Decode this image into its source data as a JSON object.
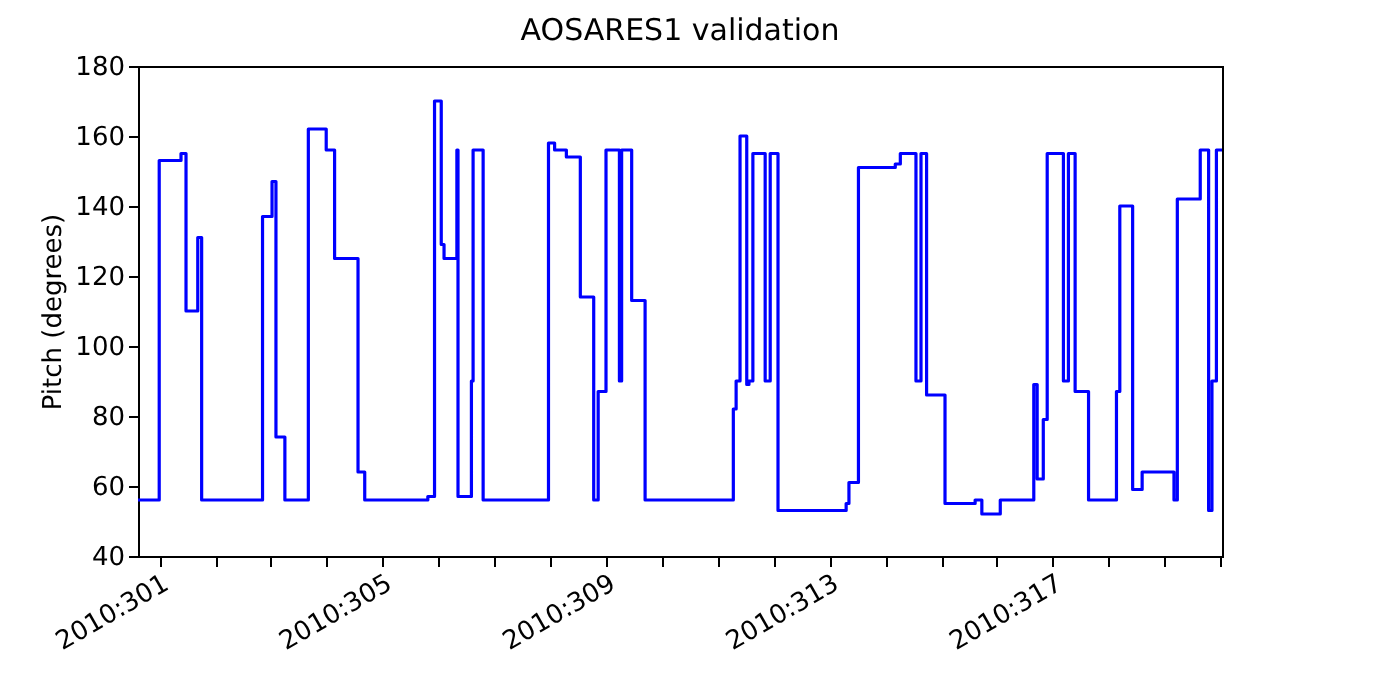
{
  "chart_data": {
    "type": "step",
    "title": "AOSARES1 validation",
    "ylabel": "Pitch (degrees)",
    "x": [
      "2010-10-27T14:53",
      "2010-10-28T00:00",
      "2010-10-28T09:22",
      "2010-10-28T11:31",
      "2010-10-28T16:34",
      "2010-10-28T18:14",
      "2010-10-29T20:24",
      "2010-10-30T00:29",
      "2010-10-30T02:10",
      "2010-10-30T06:00",
      "2010-10-30T16:05",
      "2010-10-30T23:46",
      "2010-10-31T03:22",
      "2010-10-31T13:26",
      "2010-10-31T16:19",
      "2010-11-01T19:26",
      "2010-11-01T22:19",
      "2010-11-02T01:12",
      "2010-11-02T02:24",
      "2010-11-02T07:55",
      "2010-11-02T08:24",
      "2010-11-02T14:10",
      "2010-11-02T14:53",
      "2010-11-02T19:12",
      "2010-11-03T23:17",
      "2010-11-04T01:55",
      "2010-11-04T06:58",
      "2010-11-04T12:58",
      "2010-11-04T18:43",
      "2010-11-04T20:38",
      "2010-11-05T00:00",
      "2010-11-05T05:46",
      "2010-11-05T06:43",
      "2010-11-05T11:02",
      "2010-11-05T16:48",
      "2010-11-07T06:43",
      "2010-11-07T07:55",
      "2010-11-07T09:36",
      "2010-11-07T12:29",
      "2010-11-07T13:26",
      "2010-11-07T15:07",
      "2010-11-07T20:24",
      "2010-11-07T22:34",
      "2010-11-08T01:55",
      "2010-11-09T07:12",
      "2010-11-09T08:24",
      "2010-11-09T12:29",
      "2010-11-10T04:19",
      "2010-11-10T06:29",
      "2010-11-10T13:12",
      "2010-11-10T15:22",
      "2010-11-10T17:46",
      "2010-11-11T01:41",
      "2010-11-11T14:38",
      "2010-11-11T17:31",
      "2010-11-12T01:26",
      "2010-11-12T15:50",
      "2010-11-12T17:17",
      "2010-11-12T19:55",
      "2010-11-12T21:36",
      "2010-11-13T04:34",
      "2010-11-13T06:43",
      "2010-11-13T09:36",
      "2010-11-13T15:22",
      "2010-11-14T03:22",
      "2010-11-14T04:48",
      "2010-11-14T10:19",
      "2010-11-14T14:24",
      "2010-11-15T04:05",
      "2010-11-15T05:31",
      "2010-11-15T15:22",
      "2010-11-15T18:58",
      "2010-11-15T20:24",
      "2010-11-15T22:19",
      "2010-11-16T00:43"
    ],
    "series": [
      {
        "color": "#0000ff",
        "values": [
          56,
          153,
          155,
          110,
          131,
          56,
          137,
          147,
          74,
          56,
          162,
          156,
          125,
          64,
          56,
          57,
          170,
          129,
          125,
          156,
          57,
          90,
          156,
          56,
          158,
          156,
          154,
          114,
          56,
          87,
          156,
          90,
          156,
          113,
          56,
          82,
          90,
          160,
          89,
          90,
          155,
          90,
          155,
          53,
          55,
          61,
          151,
          152,
          155,
          90,
          155,
          86,
          55,
          56,
          52,
          56,
          89,
          62,
          79,
          155,
          90,
          155,
          87,
          56,
          87,
          140,
          59,
          64,
          56,
          142,
          156,
          53,
          90,
          156,
          156
        ]
      }
    ],
    "xlim": [
      "2010-10-27T14:53",
      "2010-11-16T00:43"
    ],
    "xticks": [
      {
        "value": "2010-10-28",
        "label": "2010:301"
      },
      {
        "value": "2010-10-29",
        "label": null
      },
      {
        "value": "2010-10-30",
        "label": null
      },
      {
        "value": "2010-10-31",
        "label": null
      },
      {
        "value": "2010-11-01",
        "label": "2010:305"
      },
      {
        "value": "2010-11-02",
        "label": null
      },
      {
        "value": "2010-11-03",
        "label": null
      },
      {
        "value": "2010-11-04",
        "label": null
      },
      {
        "value": "2010-11-05",
        "label": "2010:309"
      },
      {
        "value": "2010-11-06",
        "label": null
      },
      {
        "value": "2010-11-07",
        "label": null
      },
      {
        "value": "2010-11-08",
        "label": null
      },
      {
        "value": "2010-11-09",
        "label": "2010:313"
      },
      {
        "value": "2010-11-10",
        "label": null
      },
      {
        "value": "2010-11-11",
        "label": null
      },
      {
        "value": "2010-11-12",
        "label": null
      },
      {
        "value": "2010-11-13",
        "label": "2010:317"
      },
      {
        "value": "2010-11-14",
        "label": null
      },
      {
        "value": "2010-11-15",
        "label": null
      },
      {
        "value": "2010-11-16",
        "label": null
      }
    ],
    "ylim": [
      40,
      180
    ],
    "yticks": [
      40,
      60,
      80,
      100,
      120,
      140,
      160,
      180
    ],
    "grid": false,
    "marker": "none",
    "line_style": "solid"
  }
}
